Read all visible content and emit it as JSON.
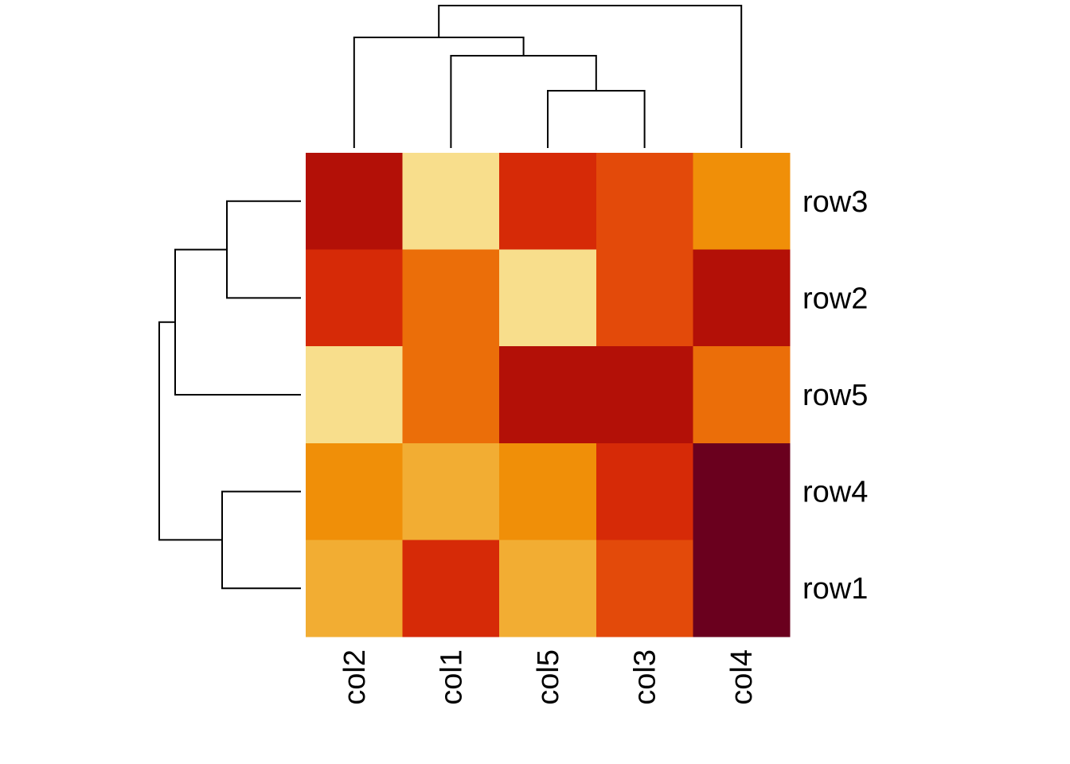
{
  "chart_data": {
    "type": "heatmap",
    "title": "",
    "xlabel": "",
    "ylabel": "",
    "columns": [
      "col2",
      "col1",
      "col5",
      "col3",
      "col4"
    ],
    "rows": [
      "row3",
      "row2",
      "row5",
      "row4",
      "row1"
    ],
    "value_scale": "rank 1 (lightest) to 8 (darkest)",
    "values": [
      [
        7,
        1,
        6,
        5,
        3
      ],
      [
        6,
        4,
        1,
        5,
        7
      ],
      [
        1,
        4,
        7,
        7,
        4
      ],
      [
        3,
        2,
        3,
        6,
        8
      ],
      [
        2,
        6,
        2,
        5,
        8
      ]
    ],
    "palette": [
      "#FFFFBF",
      "#F8DE8C",
      "#F2AD33",
      "#F08F08",
      "#EB6E09",
      "#E34A0A",
      "#D62A07",
      "#B31007",
      "#6A001E"
    ],
    "column_dendrogram": "((col2,(col1,(col5,col3))),col4)",
    "row_dendrogram": "(((row3,row2),row5),(row4,row1))",
    "legend": "none"
  }
}
